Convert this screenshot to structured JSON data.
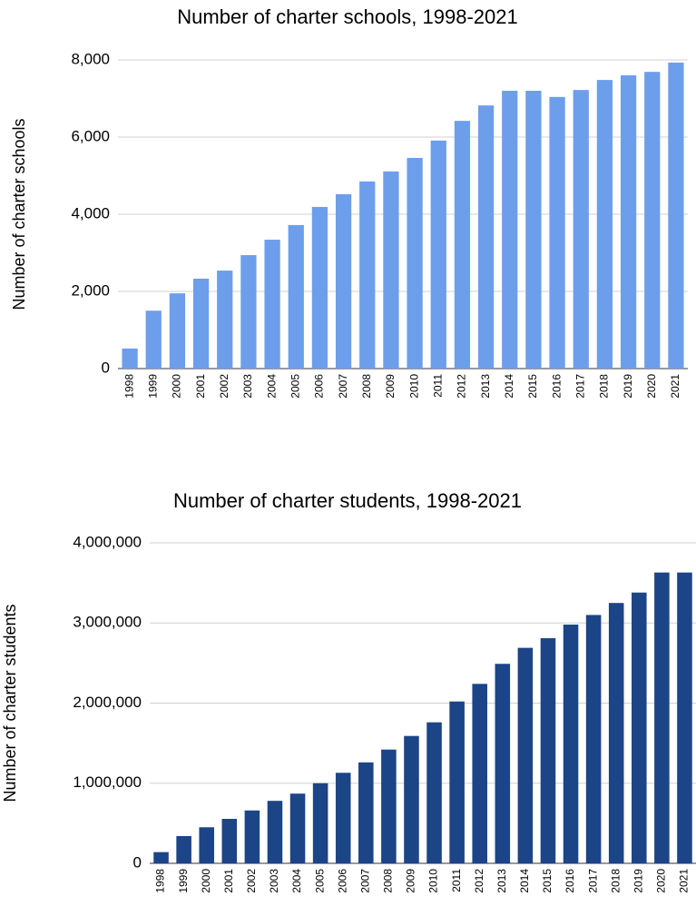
{
  "chart_data": [
    {
      "type": "bar",
      "title": "Number of charter schools, 1998-2021",
      "y_label": "Number of charter schools",
      "categories": [
        "1998",
        "1999",
        "2000",
        "2001",
        "2002",
        "2003",
        "2004",
        "2005",
        "2006",
        "2007",
        "2008",
        "2009",
        "2010",
        "2011",
        "2012",
        "2013",
        "2014",
        "2015",
        "2016",
        "2017",
        "2018",
        "2019",
        "2020",
        "2021"
      ],
      "values": [
        520,
        1500,
        1950,
        2330,
        2540,
        2940,
        3340,
        3720,
        4190,
        4520,
        4850,
        5110,
        5460,
        5910,
        6420,
        6820,
        7200,
        7200,
        7040,
        7220,
        7480,
        7600,
        7690,
        7930
      ],
      "color": "#6d9eeb",
      "ylim": [
        0,
        8000
      ],
      "yticks": [
        0,
        {
          "value": 2000,
          "label": "2,000"
        },
        {
          "value": 4000,
          "label": "4,000"
        },
        {
          "value": 6000,
          "label": "6,000"
        },
        {
          "value": 8000,
          "label": "8,000"
        }
      ],
      "grid": true
    },
    {
      "type": "bar",
      "title": "Number of charter students, 1998-2021",
      "y_label": "Number of charter students",
      "categories": [
        "1998",
        "1999",
        "2000",
        "2001",
        "2002",
        "2003",
        "2004",
        "2005",
        "2006",
        "2007",
        "2008",
        "2009",
        "2010",
        "2011",
        "2012",
        "2013",
        "2014",
        "2015",
        "2016",
        "2017",
        "2018",
        "2019",
        "2020",
        "2021"
      ],
      "values": [
        140000,
        340000,
        450000,
        555000,
        660000,
        780000,
        870000,
        1000000,
        1130000,
        1260000,
        1420000,
        1590000,
        1760000,
        2020000,
        2240000,
        2490000,
        2690000,
        2810000,
        2980000,
        3100000,
        3250000,
        3380000,
        3630000,
        3630000
      ],
      "color": "#1c4587",
      "ylim": [
        0,
        4000000
      ],
      "yticks": [
        0,
        {
          "value": 1000000,
          "label": "1,000,000"
        },
        {
          "value": 2000000,
          "label": "2,000,000"
        },
        {
          "value": 3000000,
          "label": "3,000,000"
        },
        {
          "value": 4000000,
          "label": "4,000,000"
        }
      ],
      "grid": true
    }
  ]
}
